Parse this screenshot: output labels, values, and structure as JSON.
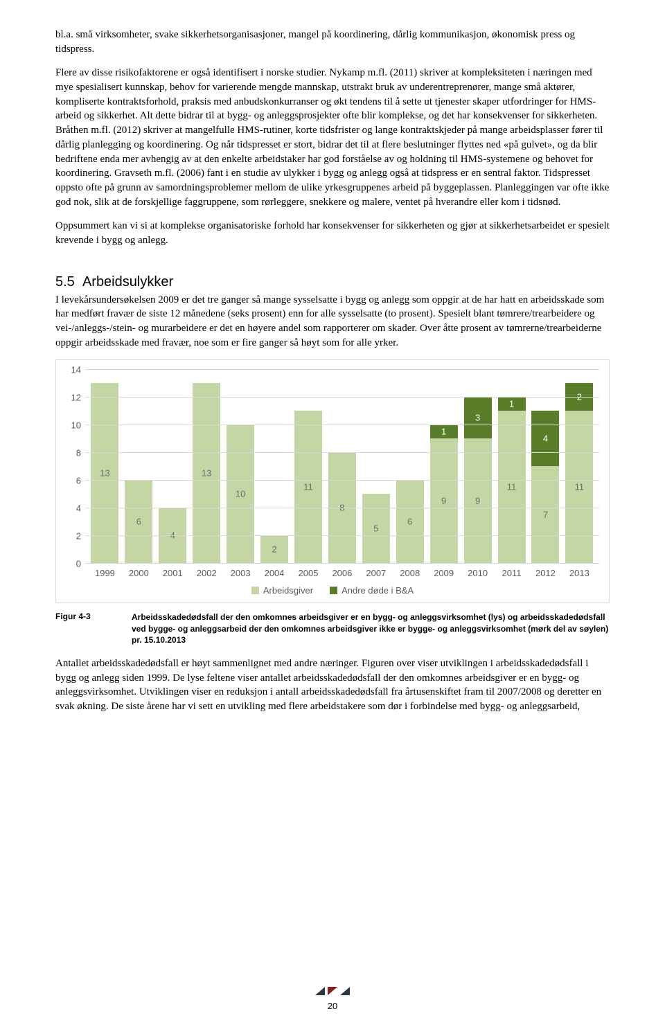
{
  "paragraphs": {
    "p1": "bl.a. små virksomheter, svake sikkerhetsorganisasjoner, mangel på koordinering, dårlig kommunikasjon, økonomisk press og tidspress.",
    "p2": "Flere av disse risikofaktorene er også identifisert i norske studier. Nykamp m.fl. (2011) skriver at kompleksiteten i næringen med mye spesialisert kunnskap, behov for varierende mengde mannskap, utstrakt bruk av underentreprenører, mange små aktører, kompliserte kontraktsforhold, praksis med anbudskonkurranser og økt tendens til å sette ut tjenester skaper utfordringer for HMS-arbeid og sikkerhet. Alt dette bidrar til at bygg- og anleggsprosjekter ofte blir komplekse, og det har konsekvenser for sikkerheten. Bråthen m.fl. (2012) skriver at mangelfulle HMS-rutiner, korte tidsfrister og lange kontraktskjeder på mange arbeidsplasser fører til dårlig planlegging og koordinering. Og når tidspresset er stort, bidrar det til at flere beslutninger flyttes ned «på gulvet», og da blir bedriftene enda mer avhengig av at den enkelte arbeidstaker har god forståelse av og holdning til HMS-systemene og behovet for koordinering. Gravseth m.fl. (2006) fant i en studie av ulykker i bygg og anlegg også at tidspress er en sentral faktor. Tidspresset oppsto ofte på grunn av samordningsproblemer mellom de ulike yrkesgruppenes arbeid på byggeplassen. Planleggingen var ofte ikke god nok, slik at de forskjellige faggruppene, som rørleggere, snekkere og malere, ventet på hverandre eller kom i tidsnød.",
    "p3": "Oppsummert kan vi si at komplekse organisatoriske forhold har konsekvenser for sikkerheten og gjør at sikkerhetsarbeidet er spesielt krevende i bygg og anlegg.",
    "p4": "I levekårsundersøkelsen 2009 er det tre ganger så mange sysselsatte i bygg og anlegg som oppgir at de har hatt en arbeidsskade som har medført fravær de siste 12 månedene (seks prosent) enn for alle sysselsatte (to prosent). Spesielt blant tømrere/trearbeidere og vei-/anleggs-/stein- og murarbeidere er det en høyere andel som rapporterer om skader. Over åtte prosent av tømrerne/trearbeiderne oppgir arbeidsskade med fravær, noe som er fire ganger så høyt som for alle yrker.",
    "p5": "Antallet arbeidsskadedødsfall er høyt sammenlignet med andre næringer. Figuren over viser utviklingen i arbeidsskadedødsfall i bygg og anlegg siden 1999. De lyse feltene viser antallet arbeidsskadedødsfall der den omkomnes arbeidsgiver er en bygg- og anleggsvirksomhet. Utviklingen viser en reduksjon i antall arbeidsskadedødsfall fra årtusenskiftet fram til 2007/2008 og deretter en svak økning. De siste årene har vi sett en utvikling med flere arbeidstakere som dør i forbindelse med bygg- og anleggsarbeid,"
  },
  "section": {
    "number": "5.5",
    "title": "Arbeidsulykker"
  },
  "chart": {
    "y_max": 14,
    "y_ticks": [
      0,
      2,
      4,
      6,
      8,
      10,
      12,
      14
    ],
    "years": [
      "1999",
      "2000",
      "2001",
      "2002",
      "2003",
      "2004",
      "2005",
      "2006",
      "2007",
      "2008",
      "2009",
      "2010",
      "2011",
      "2012",
      "2013"
    ],
    "light_values": [
      13,
      6,
      4,
      13,
      10,
      2,
      11,
      8,
      5,
      6,
      9,
      9,
      11,
      7,
      11
    ],
    "dark_values": [
      0,
      0,
      0,
      0,
      0,
      0,
      0,
      0,
      0,
      0,
      1,
      3,
      1,
      4,
      2
    ],
    "light_color": "#c4d6a4",
    "dark_color": "#5a7d2a",
    "light_text": "#6b6b6b",
    "dark_text": "#ffffff",
    "grid_color": "#d9d9d9",
    "bg": "#ffffff",
    "legend": {
      "a": "Arbeidsgiver",
      "b": "Andre døde i B&A"
    }
  },
  "figure": {
    "label": "Figur 4-3",
    "caption": "Arbeidsskadedødsfall der den omkomnes arbeidsgiver er en bygg- og anleggsvirksomhet (lys) og arbeidsskadedødsfall ved bygge- og anleggsarbeid der den omkomnes arbeidsgiver ikke er bygge- og anleggsvirksomhet (mørk del av søylen) pr. 15.10.2013"
  },
  "page_number": "20"
}
